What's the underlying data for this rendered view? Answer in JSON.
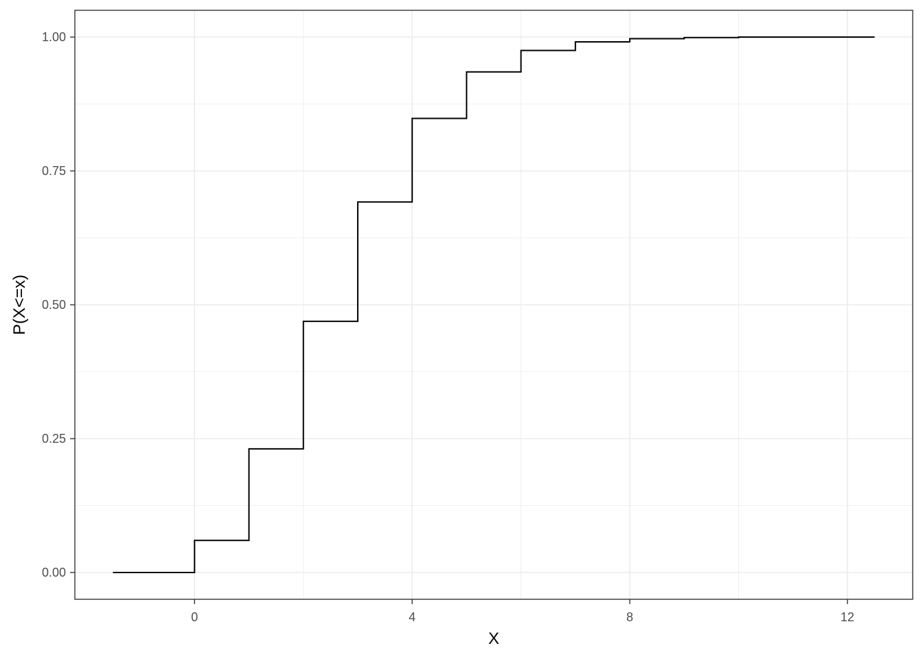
{
  "chart_data": {
    "type": "line",
    "step": true,
    "title": "",
    "xlabel": "X",
    "ylabel": "P(X<=x)",
    "xlim": [
      -2.2,
      13.2
    ],
    "ylim": [
      -0.05,
      1.05
    ],
    "x_ticks": [
      0,
      4,
      8,
      12
    ],
    "x_tick_labels": [
      "0",
      "4",
      "8",
      "12"
    ],
    "y_ticks": [
      0,
      0.25,
      0.5,
      0.75,
      1.0
    ],
    "y_tick_labels": [
      "0.00",
      "0.25",
      "0.50",
      "0.75",
      "1.00"
    ],
    "x_minor_ticks": [
      2,
      6,
      10
    ],
    "y_minor_ticks": [
      0.125,
      0.375,
      0.625,
      0.875
    ],
    "grid": true,
    "theme": "bw",
    "series": [
      {
        "x": [
          -1.5,
          0,
          1,
          2,
          3,
          4,
          5,
          6,
          7,
          8,
          9,
          10,
          11,
          12,
          12.5
        ],
        "y": [
          0,
          0.06,
          0.231,
          0.469,
          0.692,
          0.848,
          0.935,
          0.975,
          0.991,
          0.997,
          0.999,
          1.0,
          1.0,
          1.0,
          1.0
        ]
      }
    ],
    "colors": {
      "line": "#000000",
      "grid": "#ebebeb",
      "panel_border": "#333333"
    }
  }
}
